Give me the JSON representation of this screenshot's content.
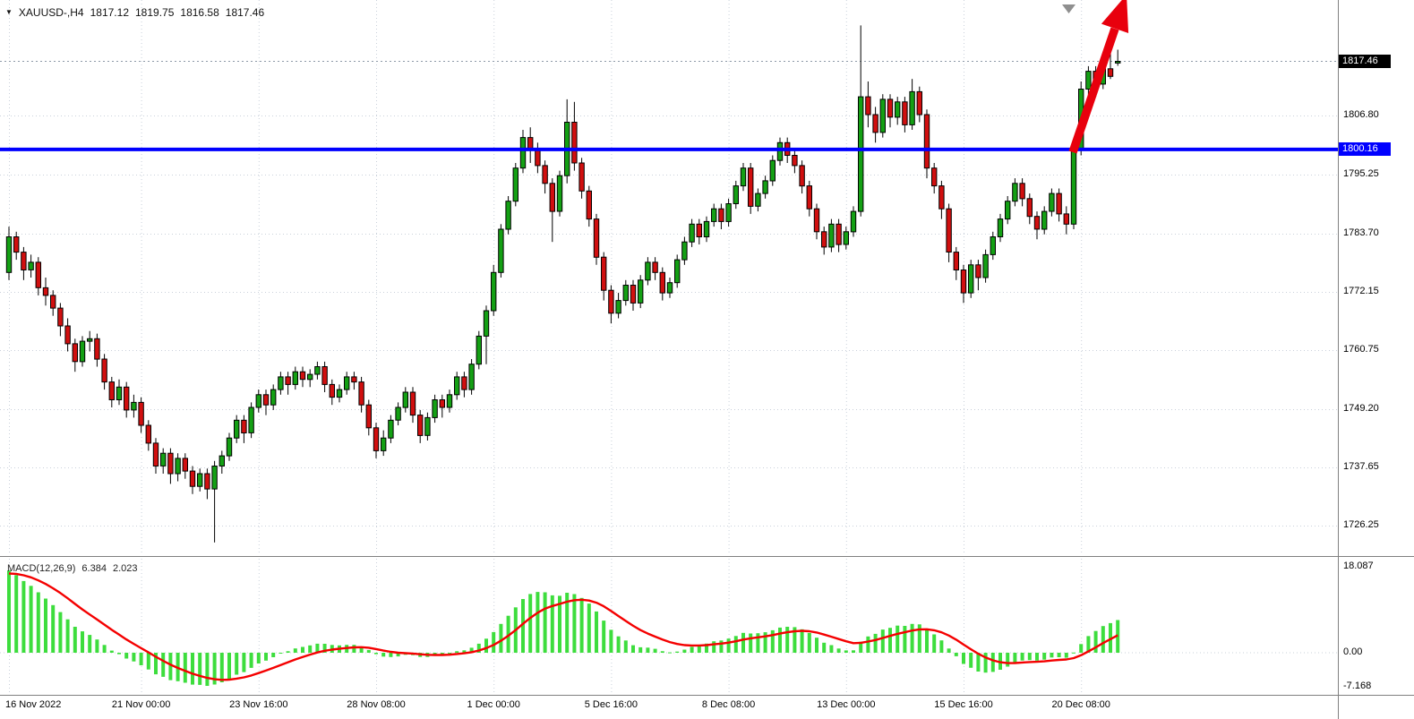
{
  "quote_bar": {
    "dropdown_icon": "▼",
    "symbol_period": "XAUUSD-,H4",
    "open": "1817.12",
    "high": "1819.75",
    "low": "1816.58",
    "close": "1817.46"
  },
  "indicator": {
    "name": "MACD(12,26,9)",
    "macd_value": "6.384",
    "signal_value": "2.023"
  },
  "price_axis": {
    "tick_labels": [
      "1806.80",
      "1795.25",
      "1783.70",
      "1772.15",
      "1760.75",
      "1749.20",
      "1737.65",
      "1726.25"
    ],
    "current_price_tag": "1817.46",
    "hline_tag": "1800.16"
  },
  "macd_axis": {
    "tick_labels": [
      "18.087",
      "0.00",
      "-7.168"
    ]
  },
  "time_axis": {
    "labels": [
      {
        "label": "16 Nov 2022",
        "bar": 0
      },
      {
        "label": "21 Nov 00:00",
        "bar": 18
      },
      {
        "label": "23 Nov 16:00",
        "bar": 34
      },
      {
        "label": "28 Nov 08:00",
        "bar": 50
      },
      {
        "label": "1 Dec 00:00",
        "bar": 66
      },
      {
        "label": "5 Dec 16:00",
        "bar": 82
      },
      {
        "label": "8 Dec 08:00",
        "bar": 98
      },
      {
        "label": "13 Dec 00:00",
        "bar": 114
      },
      {
        "label": "15 Dec 16:00",
        "bar": 130
      },
      {
        "label": "20 Dec 08:00",
        "bar": 146
      }
    ]
  },
  "colors": {
    "background": "#ffffff",
    "grid": "#c9d0da",
    "bull": "#14a014",
    "bear": "#d10f0f",
    "outline": "#000000",
    "macd_hist": "#3ddd3d",
    "macd_signal": "#f40000",
    "hline": "#0000ff",
    "bid_line": "#8d99a8",
    "separator": "#808080",
    "tag_current_bg": "#000000",
    "tag_hline_bg": "#0000ff",
    "arrow": "#e8000d",
    "marker_gray": "#8f8f8f"
  },
  "chart_data": {
    "type": "candlestick",
    "symbol": "XAUUSD-",
    "timeframe": "H4",
    "price_min": 1720.5,
    "price_max": 1829.5,
    "current_price": 1817.46,
    "hline": {
      "price": 1800.16,
      "color": "#0000ff"
    },
    "candles": [
      [
        1776,
        1785,
        1774.5,
        1783
      ],
      [
        1783,
        1784,
        1778.5,
        1780
      ],
      [
        1780,
        1781,
        1774.5,
        1776.5
      ],
      [
        1776.5,
        1779.5,
        1775,
        1778
      ],
      [
        1778,
        1779,
        1771.5,
        1773
      ],
      [
        1773,
        1775,
        1769.5,
        1771.5
      ],
      [
        1771.5,
        1772.5,
        1767.5,
        1769
      ],
      [
        1769,
        1770,
        1763.5,
        1765.5
      ],
      [
        1765.5,
        1767,
        1760.5,
        1762
      ],
      [
        1762,
        1763,
        1756.5,
        1758.5
      ],
      [
        1758.5,
        1763.5,
        1757.5,
        1762.5
      ],
      [
        1762.5,
        1764.5,
        1760.5,
        1763
      ],
      [
        1763,
        1764,
        1757.5,
        1759
      ],
      [
        1759,
        1760,
        1753,
        1754.5
      ],
      [
        1754.5,
        1755.5,
        1749.5,
        1751
      ],
      [
        1751,
        1755,
        1750,
        1753.5
      ],
      [
        1753.5,
        1754.5,
        1747.5,
        1749
      ],
      [
        1749,
        1752,
        1747.5,
        1750.5
      ],
      [
        1750.5,
        1751.5,
        1744.5,
        1746
      ],
      [
        1746,
        1747,
        1741,
        1742.5
      ],
      [
        1742.5,
        1743.5,
        1736.5,
        1738
      ],
      [
        1738,
        1741.5,
        1736.5,
        1740.5
      ],
      [
        1740.5,
        1741.5,
        1734.5,
        1736.5
      ],
      [
        1736.5,
        1740.5,
        1735,
        1739.5
      ],
      [
        1739.5,
        1740.5,
        1735.5,
        1737
      ],
      [
        1737,
        1738,
        1732.5,
        1734
      ],
      [
        1734,
        1737.5,
        1733,
        1736.5
      ],
      [
        1736.5,
        1737.5,
        1731.5,
        1733.5
      ],
      [
        1733.5,
        1739,
        1723,
        1738
      ],
      [
        1738,
        1741,
        1736.5,
        1740
      ],
      [
        1740,
        1744.5,
        1739,
        1743.5
      ],
      [
        1743.5,
        1748,
        1742.5,
        1747
      ],
      [
        1747,
        1748,
        1742.5,
        1744.5
      ],
      [
        1744.5,
        1750.5,
        1743.5,
        1749.5
      ],
      [
        1749.5,
        1753,
        1748.5,
        1752
      ],
      [
        1752,
        1753,
        1748,
        1750
      ],
      [
        1750,
        1754,
        1749,
        1753
      ],
      [
        1753,
        1756.5,
        1752,
        1755.5
      ],
      [
        1755.5,
        1756.5,
        1752,
        1754
      ],
      [
        1754,
        1757.5,
        1753,
        1756.5
      ],
      [
        1756.5,
        1757.5,
        1753.5,
        1755
      ],
      [
        1755,
        1757,
        1753.5,
        1756
      ],
      [
        1756,
        1758.5,
        1755,
        1757.5
      ],
      [
        1757.5,
        1758.5,
        1752.5,
        1754
      ],
      [
        1754,
        1755,
        1750,
        1751.5
      ],
      [
        1751.5,
        1754,
        1750.5,
        1753
      ],
      [
        1753,
        1756.5,
        1752,
        1755.5
      ],
      [
        1755.5,
        1756.5,
        1753,
        1754.5
      ],
      [
        1754.5,
        1755.5,
        1748.5,
        1750
      ],
      [
        1750,
        1751,
        1744,
        1745.5
      ],
      [
        1745.5,
        1746.5,
        1739.5,
        1741
      ],
      [
        1741,
        1745,
        1740,
        1743.5
      ],
      [
        1743.5,
        1748,
        1742.5,
        1747
      ],
      [
        1747,
        1750.5,
        1746,
        1749.5
      ],
      [
        1749.5,
        1753.5,
        1748.5,
        1752.5
      ],
      [
        1752.5,
        1753.5,
        1746.5,
        1748
      ],
      [
        1748,
        1749,
        1742.5,
        1744
      ],
      [
        1744,
        1748.5,
        1743,
        1747.5
      ],
      [
        1747.5,
        1752,
        1746.5,
        1751
      ],
      [
        1751,
        1752,
        1747.5,
        1749.5
      ],
      [
        1749.5,
        1753,
        1748.5,
        1752
      ],
      [
        1752,
        1756.5,
        1751,
        1755.5
      ],
      [
        1755.5,
        1756.5,
        1751.5,
        1753
      ],
      [
        1753,
        1759,
        1752,
        1758
      ],
      [
        1758,
        1764.5,
        1757,
        1763.5
      ],
      [
        1763.5,
        1769.5,
        1758,
        1768.5
      ],
      [
        1768.5,
        1777.5,
        1767.5,
        1776
      ],
      [
        1776,
        1785.5,
        1775,
        1784.5
      ],
      [
        1784.5,
        1791,
        1783.5,
        1790
      ],
      [
        1790,
        1797.5,
        1789,
        1796.5
      ],
      [
        1796.5,
        1804,
        1795.5,
        1802.5
      ],
      [
        1802.5,
        1804.5,
        1797.5,
        1800
      ],
      [
        1800,
        1801.5,
        1795.5,
        1797
      ],
      [
        1797,
        1798,
        1791.5,
        1793.5
      ],
      [
        1793.5,
        1794.5,
        1782,
        1788
      ],
      [
        1788,
        1796,
        1787,
        1795
      ],
      [
        1795,
        1810,
        1793.5,
        1805.5
      ],
      [
        1805.5,
        1809.5,
        1796,
        1797.5
      ],
      [
        1797.5,
        1798.5,
        1790.5,
        1792
      ],
      [
        1792,
        1793,
        1785,
        1786.5
      ],
      [
        1786.5,
        1787.5,
        1777.5,
        1779
      ],
      [
        1779,
        1780,
        1770.5,
        1772.5
      ],
      [
        1772.5,
        1773.5,
        1766,
        1768
      ],
      [
        1768,
        1772,
        1767,
        1770.5
      ],
      [
        1770.5,
        1774.5,
        1769.5,
        1773.5
      ],
      [
        1773.5,
        1774.5,
        1768.5,
        1770
      ],
      [
        1770,
        1775.5,
        1769,
        1774.5
      ],
      [
        1774.5,
        1779,
        1773.5,
        1778
      ],
      [
        1778,
        1779,
        1774.5,
        1776
      ],
      [
        1776,
        1777,
        1770.5,
        1772
      ],
      [
        1772,
        1775,
        1771,
        1774
      ],
      [
        1774,
        1779.5,
        1773,
        1778.5
      ],
      [
        1778.5,
        1783,
        1777.5,
        1782
      ],
      [
        1782,
        1786.5,
        1781,
        1785.5
      ],
      [
        1785.5,
        1786.5,
        1781.5,
        1783
      ],
      [
        1783,
        1787,
        1782,
        1786
      ],
      [
        1786,
        1789.5,
        1785,
        1788.5
      ],
      [
        1788.5,
        1789.5,
        1784.5,
        1786
      ],
      [
        1786,
        1790.5,
        1785,
        1789.5
      ],
      [
        1789.5,
        1794,
        1788.5,
        1793
      ],
      [
        1793,
        1797.5,
        1792,
        1796.5
      ],
      [
        1796.5,
        1797.5,
        1787.5,
        1789
      ],
      [
        1789,
        1792.5,
        1788,
        1791.5
      ],
      [
        1791.5,
        1795,
        1790.5,
        1794
      ],
      [
        1794,
        1799,
        1793,
        1798
      ],
      [
        1798,
        1802.5,
        1797,
        1801.5
      ],
      [
        1801.5,
        1802.5,
        1797.5,
        1799
      ],
      [
        1799,
        1800,
        1795.5,
        1797
      ],
      [
        1797,
        1798,
        1791.5,
        1793
      ],
      [
        1793,
        1794,
        1787,
        1788.5
      ],
      [
        1788.5,
        1789.5,
        1782.5,
        1784
      ],
      [
        1784,
        1785,
        1779.5,
        1781
      ],
      [
        1781,
        1786.5,
        1780,
        1785.5
      ],
      [
        1785.5,
        1786.5,
        1780,
        1781.5
      ],
      [
        1781.5,
        1785,
        1780.5,
        1784
      ],
      [
        1784,
        1789,
        1783,
        1788
      ],
      [
        1788,
        1824.5,
        1787,
        1810.5
      ],
      [
        1810.5,
        1813.5,
        1804.5,
        1807
      ],
      [
        1807,
        1808.5,
        1801.5,
        1803.5
      ],
      [
        1803.5,
        1811,
        1802.5,
        1810
      ],
      [
        1810,
        1811,
        1804.5,
        1806.5
      ],
      [
        1806.5,
        1810.5,
        1805,
        1809.5
      ],
      [
        1809.5,
        1810.5,
        1803.5,
        1805
      ],
      [
        1805,
        1814,
        1804,
        1811.5
      ],
      [
        1811.5,
        1812.5,
        1805.5,
        1807
      ],
      [
        1807,
        1808,
        1794.5,
        1796.5
      ],
      [
        1796.5,
        1797.5,
        1791.5,
        1793
      ],
      [
        1793,
        1794,
        1786.5,
        1788.5
      ],
      [
        1788.5,
        1789.5,
        1778,
        1780
      ],
      [
        1780,
        1781,
        1774.5,
        1776.5
      ],
      [
        1776.5,
        1777.5,
        1770,
        1772
      ],
      [
        1772,
        1778.5,
        1771,
        1777.5
      ],
      [
        1777.5,
        1778.5,
        1772.5,
        1775
      ],
      [
        1775,
        1780.5,
        1774,
        1779.5
      ],
      [
        1779.5,
        1784,
        1778.5,
        1783
      ],
      [
        1783,
        1787.5,
        1782,
        1786.5
      ],
      [
        1786.5,
        1791,
        1785.5,
        1790
      ],
      [
        1790,
        1794.5,
        1789,
        1793.5
      ],
      [
        1793.5,
        1794.5,
        1789,
        1790.5
      ],
      [
        1790.5,
        1791.5,
        1785.5,
        1787
      ],
      [
        1787,
        1788,
        1782.5,
        1784.5
      ],
      [
        1784.5,
        1789,
        1783.5,
        1788
      ],
      [
        1788,
        1792.5,
        1787,
        1791.5
      ],
      [
        1791.5,
        1792.5,
        1786,
        1787.5
      ],
      [
        1787.5,
        1789,
        1783.5,
        1785.5
      ],
      [
        1785.5,
        1801,
        1784.5,
        1800
      ],
      [
        1800,
        1813.5,
        1799,
        1812
      ],
      [
        1812,
        1816.5,
        1809,
        1815.5
      ],
      [
        1815.5,
        1816.5,
        1810.5,
        1813
      ],
      [
        1813,
        1817.5,
        1812,
        1816
      ],
      [
        1816,
        1819.75,
        1814,
        1814.5
      ],
      [
        1817.12,
        1819.75,
        1816.58,
        1817.46
      ]
    ],
    "macd": {
      "fast": 12,
      "slow": 26,
      "signal_period": 9,
      "last_macd": 6.384,
      "last_signal": 2.023,
      "axis_values": [
        18.087,
        0.0,
        -7.168
      ],
      "seed_ema12": 1775,
      "seed_ema26": 1757,
      "seed_signal": 16.5
    },
    "annotations": {
      "trend_arrow": {
        "shape": "up-right-arrow",
        "color": "#e8000d"
      },
      "gray_marker": {
        "shape": "down-triangle",
        "color": "#8f8f8f"
      }
    }
  }
}
